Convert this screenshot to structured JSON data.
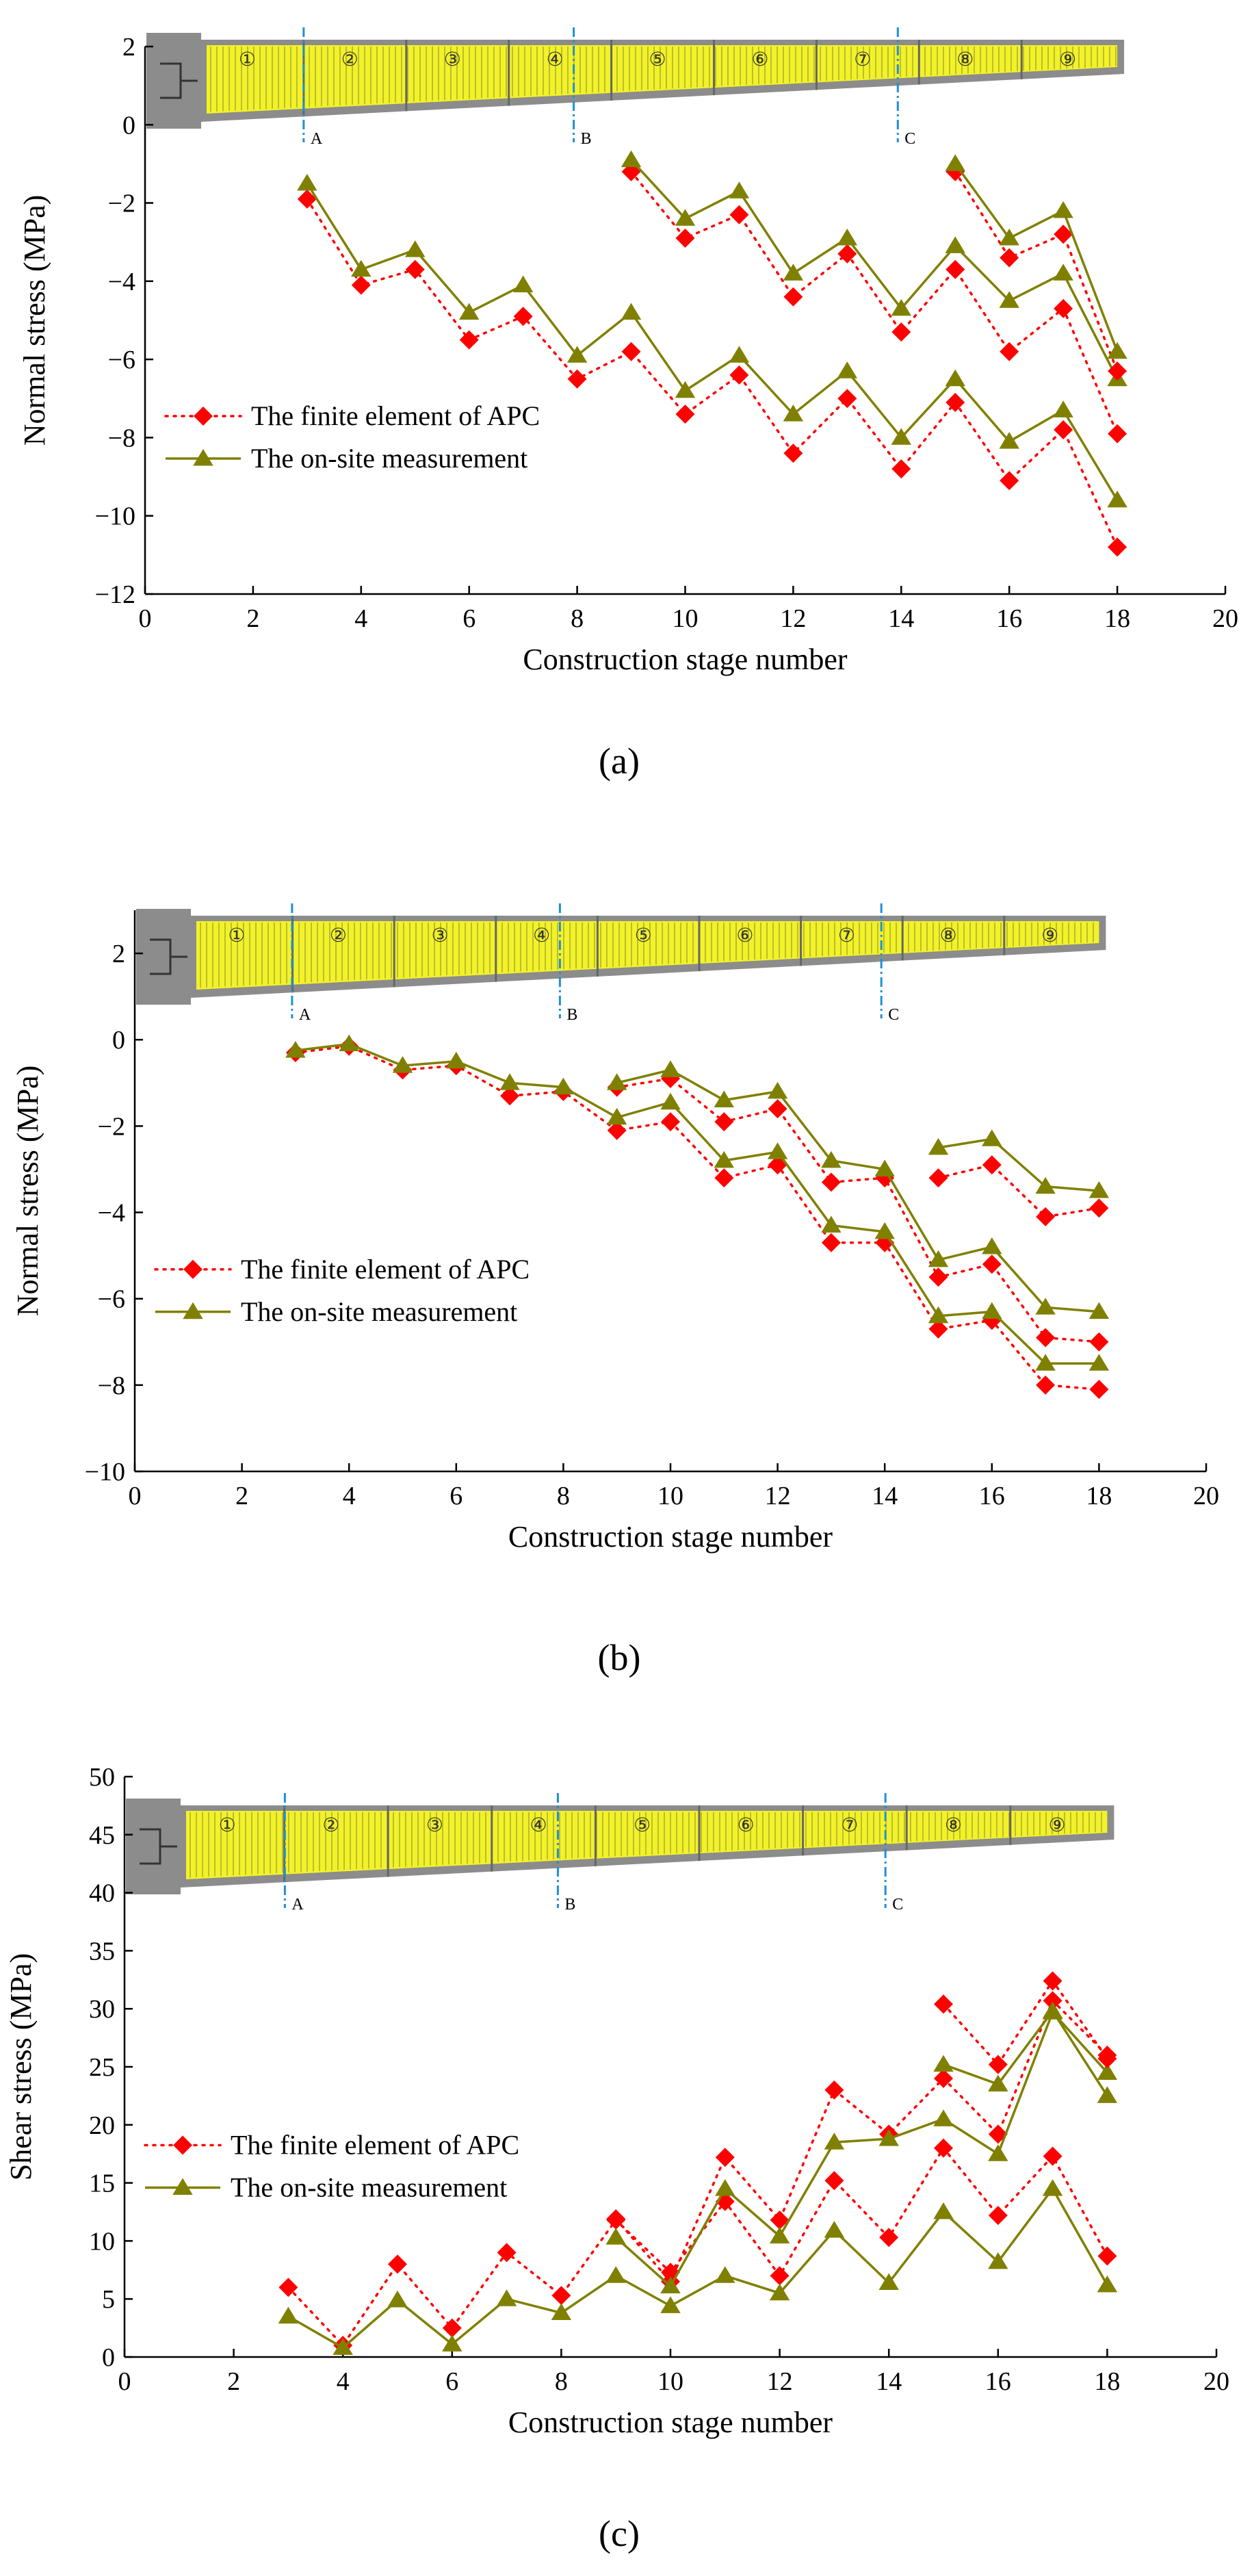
{
  "colors": {
    "finite_element": "#ff0000",
    "measurement": "#808000",
    "beam_fill": "#f2f22a",
    "beam_gray": "#8c8c8c",
    "section_line": "#1e90d8"
  },
  "beam": {
    "segments": [
      "①",
      "②",
      "③",
      "④",
      "⑤",
      "⑥",
      "⑦",
      "⑧",
      "⑨"
    ],
    "sections": [
      "A",
      "B",
      "C"
    ]
  },
  "chart_data": [
    {
      "type": "line",
      "panel": "(a)",
      "xlabel": "Construction stage number",
      "ylabel": "Normal stress (MPa)",
      "xlim": [
        0,
        20
      ],
      "ylim": [
        -12,
        2
      ],
      "xticks": [
        0,
        2,
        4,
        6,
        8,
        10,
        12,
        14,
        16,
        18,
        20
      ],
      "yticks": [
        -12,
        -10,
        -8,
        -6,
        -4,
        -2,
        0,
        2
      ],
      "legend": {
        "position": "left",
        "entries": [
          "The finite element of APC",
          "The on-site measurement"
        ]
      },
      "series": [
        {
          "name": "The finite element of APC",
          "x": [
            3,
            4,
            5,
            6,
            7,
            8,
            9,
            10,
            11,
            12,
            13,
            14,
            15,
            16,
            17,
            18
          ],
          "values": [
            -1.9,
            -4.1,
            -3.7,
            -5.5,
            -4.9,
            -6.5,
            -5.8,
            -7.4,
            -6.4,
            -8.4,
            -7.0,
            -8.8,
            -7.1,
            -9.1,
            -7.8,
            -10.8
          ]
        },
        {
          "name": "The on-site measurement",
          "x": [
            3,
            4,
            5,
            6,
            7,
            8,
            9,
            10,
            11,
            12,
            13,
            14,
            15,
            16,
            17,
            18
          ],
          "values": [
            -1.5,
            -3.7,
            -3.2,
            -4.8,
            -4.1,
            -5.9,
            -4.8,
            -6.8,
            -5.9,
            -7.4,
            -6.3,
            -8.0,
            -6.5,
            -8.1,
            -7.3,
            -9.6
          ]
        },
        {
          "name": "The finite element of APC",
          "x": [
            9,
            10,
            11,
            12,
            13,
            14,
            15,
            16,
            17,
            18
          ],
          "values": [
            -1.2,
            -2.9,
            -2.3,
            -4.4,
            -3.3,
            -5.3,
            -3.7,
            -5.8,
            -4.7,
            -7.9
          ]
        },
        {
          "name": "The on-site measurement",
          "x": [
            9,
            10,
            11,
            12,
            13,
            14,
            15,
            16,
            17,
            18
          ],
          "values": [
            -0.9,
            -2.4,
            -1.7,
            -3.8,
            -2.9,
            -4.7,
            -3.1,
            -4.5,
            -3.8,
            -6.5
          ]
        },
        {
          "name": "The finite element of APC",
          "x": [
            15,
            16,
            17,
            18
          ],
          "values": [
            -1.2,
            -3.4,
            -2.8,
            -6.3
          ]
        },
        {
          "name": "The on-site measurement",
          "x": [
            15,
            16,
            17,
            18
          ],
          "values": [
            -1.0,
            -2.9,
            -2.2,
            -5.8
          ]
        }
      ]
    },
    {
      "type": "line",
      "panel": "(b)",
      "xlabel": "Construction stage number",
      "ylabel": "Normal stress (MPa)",
      "xlim": [
        0,
        20
      ],
      "ylim": [
        -10,
        3
      ],
      "xticks": [
        0,
        2,
        4,
        6,
        8,
        10,
        12,
        14,
        16,
        18,
        20
      ],
      "yticks": [
        -10,
        -8,
        -6,
        -4,
        -2,
        0,
        2
      ],
      "legend": {
        "position": "left",
        "entries": [
          "The finite element of APC",
          "The on-site measurement"
        ]
      },
      "series": [
        {
          "name": "The finite element of APC",
          "x": [
            3,
            4,
            5,
            6,
            7,
            8,
            9,
            10,
            11,
            12,
            13,
            14,
            15,
            16,
            17,
            18
          ],
          "values": [
            -0.3,
            -0.15,
            -0.7,
            -0.6,
            -1.3,
            -1.2,
            -2.1,
            -1.9,
            -3.2,
            -2.9,
            -4.7,
            -4.7,
            -6.7,
            -6.5,
            -8.0,
            -8.1
          ]
        },
        {
          "name": "The on-site measurement",
          "x": [
            3,
            4,
            5,
            6,
            7,
            8,
            9,
            10,
            11,
            12,
            13,
            14,
            15,
            16,
            17,
            18
          ],
          "values": [
            -0.25,
            -0.1,
            -0.6,
            -0.5,
            -1.0,
            -1.1,
            -1.8,
            -1.45,
            -2.8,
            -2.6,
            -4.3,
            -4.45,
            -6.4,
            -6.3,
            -7.5,
            -7.5
          ]
        },
        {
          "name": "The finite element of APC",
          "x": [
            9,
            10,
            11,
            12,
            13,
            14,
            15,
            16,
            17,
            18
          ],
          "values": [
            -1.1,
            -0.9,
            -1.9,
            -1.6,
            -3.3,
            -3.2,
            -5.5,
            -5.2,
            -6.9,
            -7.0
          ]
        },
        {
          "name": "The on-site measurement",
          "x": [
            9,
            10,
            11,
            12,
            13,
            14,
            15,
            16,
            17,
            18
          ],
          "values": [
            -1.0,
            -0.7,
            -1.4,
            -1.2,
            -2.8,
            -3.0,
            -5.1,
            -4.8,
            -6.2,
            -6.3
          ]
        },
        {
          "name": "The finite element of APC",
          "x": [
            15,
            16,
            17,
            18
          ],
          "values": [
            -3.2,
            -2.9,
            -4.1,
            -3.9
          ]
        },
        {
          "name": "The on-site measurement",
          "x": [
            15,
            16,
            17,
            18
          ],
          "values": [
            -2.5,
            -2.3,
            -3.4,
            -3.5
          ]
        }
      ]
    },
    {
      "type": "line",
      "panel": "(c)",
      "xlabel": "Construction stage number",
      "ylabel": "Shear stress (MPa)",
      "xlim": [
        0,
        20
      ],
      "ylim": [
        0,
        50
      ],
      "xticks": [
        0,
        2,
        4,
        6,
        8,
        10,
        12,
        14,
        16,
        18,
        20
      ],
      "yticks": [
        0,
        5,
        10,
        15,
        20,
        25,
        30,
        35,
        40,
        45,
        50
      ],
      "legend": {
        "position": "left",
        "entries": [
          "The finite element of APC",
          "The on-site measurement"
        ]
      },
      "series": [
        {
          "name": "The finite element of APC",
          "x": [
            3,
            4,
            5,
            6,
            7,
            8,
            9,
            10,
            11,
            12,
            13,
            14,
            15,
            16,
            17,
            18
          ],
          "values": [
            6.0,
            1.0,
            8.0,
            2.5,
            9.0,
            5.3,
            11.8,
            7.3,
            13.4,
            7.0,
            15.2,
            10.3,
            18.0,
            12.2,
            17.3,
            8.7
          ]
        },
        {
          "name": "The on-site measurement",
          "x": [
            3,
            4,
            5,
            6,
            7,
            8,
            9,
            10,
            11,
            12,
            13,
            14,
            15,
            16,
            17,
            18
          ],
          "values": [
            3.5,
            0.8,
            4.9,
            1.1,
            5.0,
            3.8,
            7.0,
            4.4,
            7.0,
            5.5,
            10.9,
            6.4,
            12.5,
            8.2,
            14.5,
            6.2
          ]
        },
        {
          "name": "The finite element of APC",
          "x": [
            9,
            10,
            11,
            12,
            13,
            14,
            15,
            16,
            17,
            18
          ],
          "values": [
            11.9,
            6.5,
            17.2,
            11.8,
            23.0,
            19.2,
            24.0,
            19.2,
            30.7,
            26.0
          ]
        },
        {
          "name": "The on-site measurement",
          "x": [
            9,
            10,
            11,
            12,
            13,
            14,
            15,
            16,
            17,
            18
          ],
          "values": [
            10.3,
            6.1,
            14.5,
            10.4,
            18.5,
            18.8,
            20.5,
            17.5,
            29.7,
            24.5
          ]
        },
        {
          "name": "The finite element of APC",
          "x": [
            15,
            16,
            17,
            18
          ],
          "values": [
            30.4,
            25.2,
            32.4,
            25.7
          ]
        },
        {
          "name": "The on-site measurement",
          "x": [
            15,
            16,
            17,
            18
          ],
          "values": [
            25.2,
            23.5,
            29.8,
            22.5
          ]
        }
      ]
    }
  ]
}
